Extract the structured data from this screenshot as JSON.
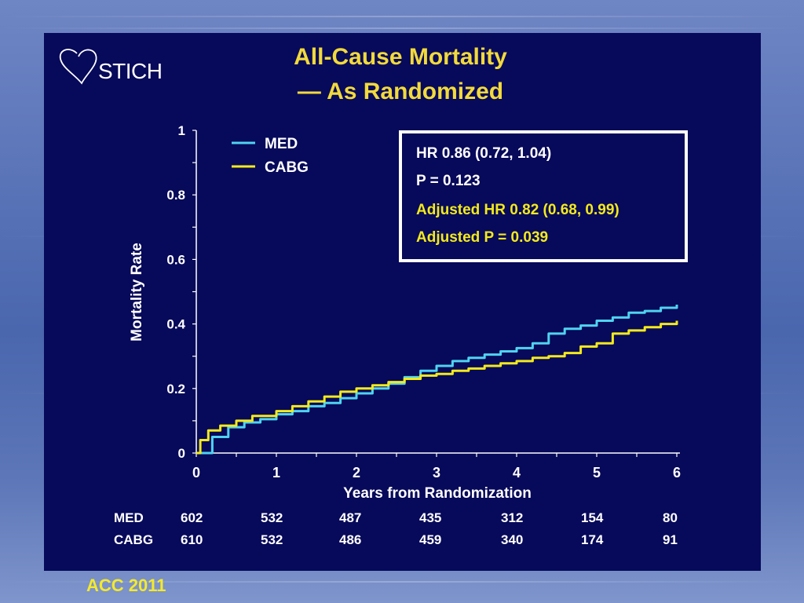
{
  "slide": {
    "logo_text": "STICH",
    "title_line1": "All-Cause Mortality",
    "title_line2": "— As Randomized",
    "footer": "ACC 2011"
  },
  "colors": {
    "background_panel": "#07095a",
    "title": "#f2da3b",
    "med": "#4fd3f0",
    "cabg": "#f3ea1c",
    "axis": "#ffffff"
  },
  "stats_box": {
    "line1": "HR 0.86 (0.72, 1.04)",
    "line2": "P = 0.123",
    "line3": "Adjusted HR 0.82 (0.68, 0.99)",
    "line4": "Adjusted P = 0.039"
  },
  "risk_table": {
    "rows": [
      {
        "label": "MED",
        "values": [
          "602",
          "532",
          "487",
          "435",
          "312",
          "154",
          "80"
        ]
      },
      {
        "label": "CABG",
        "values": [
          "610",
          "532",
          "486",
          "459",
          "340",
          "174",
          "91"
        ]
      }
    ]
  },
  "chart_data": {
    "type": "line",
    "xlabel": "Years from Randomization",
    "ylabel": "Mortality Rate",
    "xlim": [
      0,
      6
    ],
    "ylim": [
      0,
      1
    ],
    "xticks": [
      "0",
      "1",
      "2",
      "3",
      "4",
      "5",
      "6"
    ],
    "yticks": [
      "0",
      "0.2",
      "0.4",
      "0.6",
      "0.8",
      "1"
    ],
    "legend_position": "top-left",
    "series": [
      {
        "name": "MED",
        "color": "#4fd3f0",
        "x": [
          0,
          0.2,
          0.4,
          0.6,
          0.8,
          1.0,
          1.2,
          1.4,
          1.6,
          1.8,
          2.0,
          2.2,
          2.4,
          2.6,
          2.8,
          3.0,
          3.2,
          3.4,
          3.6,
          3.8,
          4.0,
          4.2,
          4.4,
          4.6,
          4.8,
          5.0,
          5.2,
          5.4,
          5.6,
          5.8,
          6.0
        ],
        "y": [
          0,
          0.05,
          0.08,
          0.095,
          0.105,
          0.12,
          0.13,
          0.145,
          0.155,
          0.17,
          0.185,
          0.2,
          0.215,
          0.235,
          0.255,
          0.27,
          0.285,
          0.295,
          0.305,
          0.315,
          0.325,
          0.34,
          0.37,
          0.385,
          0.395,
          0.41,
          0.42,
          0.435,
          0.44,
          0.45,
          0.46
        ]
      },
      {
        "name": "CABG",
        "color": "#f3ea1c",
        "x": [
          0,
          0.05,
          0.15,
          0.3,
          0.5,
          0.7,
          1.0,
          1.2,
          1.4,
          1.6,
          1.8,
          2.0,
          2.2,
          2.4,
          2.6,
          2.8,
          3.0,
          3.2,
          3.4,
          3.6,
          3.8,
          4.0,
          4.2,
          4.4,
          4.6,
          4.8,
          5.0,
          5.2,
          5.4,
          5.6,
          5.8,
          6.0
        ],
        "y": [
          0,
          0.04,
          0.07,
          0.085,
          0.1,
          0.115,
          0.13,
          0.145,
          0.16,
          0.175,
          0.19,
          0.2,
          0.21,
          0.22,
          0.23,
          0.24,
          0.245,
          0.255,
          0.262,
          0.27,
          0.278,
          0.285,
          0.295,
          0.3,
          0.31,
          0.33,
          0.34,
          0.37,
          0.38,
          0.39,
          0.4,
          0.41
        ]
      }
    ]
  }
}
